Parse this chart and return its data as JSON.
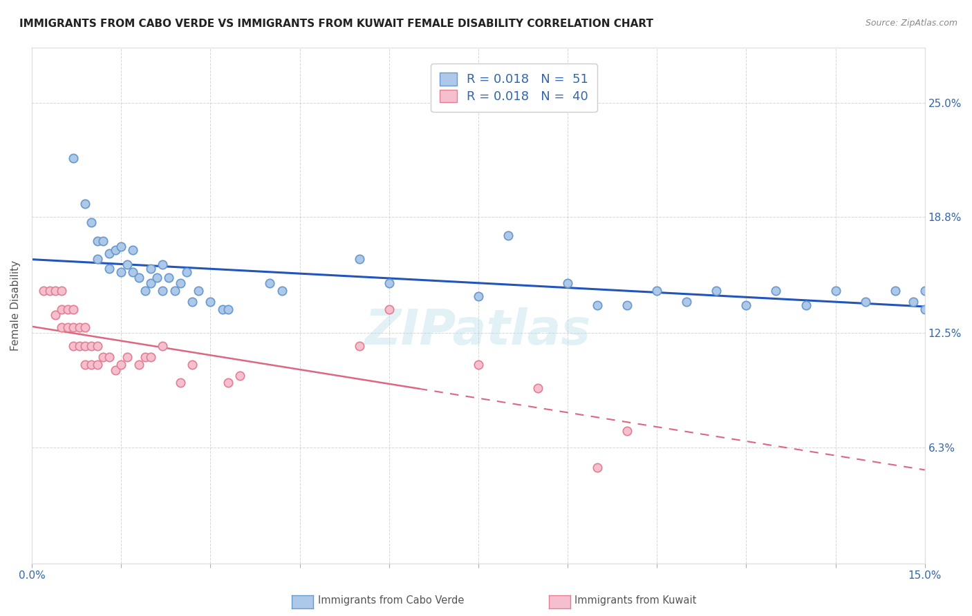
{
  "title": "IMMIGRANTS FROM CABO VERDE VS IMMIGRANTS FROM KUWAIT FEMALE DISABILITY CORRELATION CHART",
  "source": "Source: ZipAtlas.com",
  "ylabel": "Female Disability",
  "xlim": [
    0.0,
    0.15
  ],
  "ylim": [
    0.0,
    0.28
  ],
  "yticks": [
    0.0,
    0.063,
    0.125,
    0.188,
    0.25
  ],
  "ytick_labels": [
    "",
    "6.3%",
    "12.5%",
    "18.8%",
    "25.0%"
  ],
  "xticks": [
    0.0,
    0.015,
    0.03,
    0.045,
    0.06,
    0.075,
    0.09,
    0.105,
    0.12,
    0.135,
    0.15
  ],
  "xtick_labels": [
    "0.0%",
    "",
    "",
    "",
    "",
    "",
    "",
    "",
    "",
    "",
    "15.0%"
  ],
  "cabo_verde_color": "#adc8e8",
  "cabo_verde_edge": "#6699cc",
  "kuwait_color": "#f5bfcf",
  "kuwait_edge": "#e08090",
  "trend_blue": "#2255bb",
  "trend_pink": "#dd6680",
  "label1": "Immigrants from Cabo Verde",
  "label2": "Immigrants from Kuwait",
  "legend_R1": "R = 0.018",
  "legend_N1": "N =  51",
  "legend_R2": "R = 0.018",
  "legend_N2": "N =  40",
  "cabo_verde_x": [
    0.007,
    0.009,
    0.01,
    0.011,
    0.011,
    0.012,
    0.013,
    0.013,
    0.014,
    0.015,
    0.015,
    0.016,
    0.017,
    0.017,
    0.018,
    0.019,
    0.02,
    0.02,
    0.021,
    0.022,
    0.022,
    0.023,
    0.024,
    0.025,
    0.026,
    0.027,
    0.028,
    0.03,
    0.032,
    0.033,
    0.04,
    0.042,
    0.055,
    0.06,
    0.075,
    0.08,
    0.09,
    0.095,
    0.1,
    0.105,
    0.11,
    0.115,
    0.12,
    0.125,
    0.13,
    0.135,
    0.14,
    0.145,
    0.148,
    0.15,
    0.15
  ],
  "cabo_verde_y": [
    0.22,
    0.195,
    0.185,
    0.175,
    0.165,
    0.175,
    0.168,
    0.16,
    0.17,
    0.172,
    0.158,
    0.162,
    0.17,
    0.158,
    0.155,
    0.148,
    0.16,
    0.152,
    0.155,
    0.162,
    0.148,
    0.155,
    0.148,
    0.152,
    0.158,
    0.142,
    0.148,
    0.142,
    0.138,
    0.138,
    0.152,
    0.148,
    0.165,
    0.152,
    0.145,
    0.178,
    0.152,
    0.14,
    0.14,
    0.148,
    0.142,
    0.148,
    0.14,
    0.148,
    0.14,
    0.148,
    0.142,
    0.148,
    0.142,
    0.138,
    0.148
  ],
  "kuwait_x": [
    0.002,
    0.003,
    0.004,
    0.004,
    0.005,
    0.005,
    0.005,
    0.006,
    0.006,
    0.007,
    0.007,
    0.007,
    0.008,
    0.008,
    0.009,
    0.009,
    0.009,
    0.01,
    0.01,
    0.011,
    0.011,
    0.012,
    0.013,
    0.014,
    0.015,
    0.016,
    0.018,
    0.019,
    0.02,
    0.022,
    0.025,
    0.027,
    0.033,
    0.035,
    0.055,
    0.06,
    0.075,
    0.085,
    0.095,
    0.1
  ],
  "kuwait_y": [
    0.148,
    0.148,
    0.148,
    0.135,
    0.148,
    0.138,
    0.128,
    0.138,
    0.128,
    0.138,
    0.128,
    0.118,
    0.128,
    0.118,
    0.128,
    0.118,
    0.108,
    0.118,
    0.108,
    0.118,
    0.108,
    0.112,
    0.112,
    0.105,
    0.108,
    0.112,
    0.108,
    0.112,
    0.112,
    0.118,
    0.098,
    0.108,
    0.098,
    0.102,
    0.118,
    0.138,
    0.108,
    0.095,
    0.052,
    0.072
  ],
  "background_color": "#ffffff",
  "grid_color": "#cccccc",
  "title_color": "#222222",
  "source_color": "#888888",
  "axis_label_color": "#555555",
  "tick_label_color": "#3366aa",
  "marker_size": 80,
  "title_fontsize": 11,
  "source_fontsize": 9,
  "legend_fontsize": 13,
  "axis_label_fontsize": 11,
  "tick_fontsize": 11
}
